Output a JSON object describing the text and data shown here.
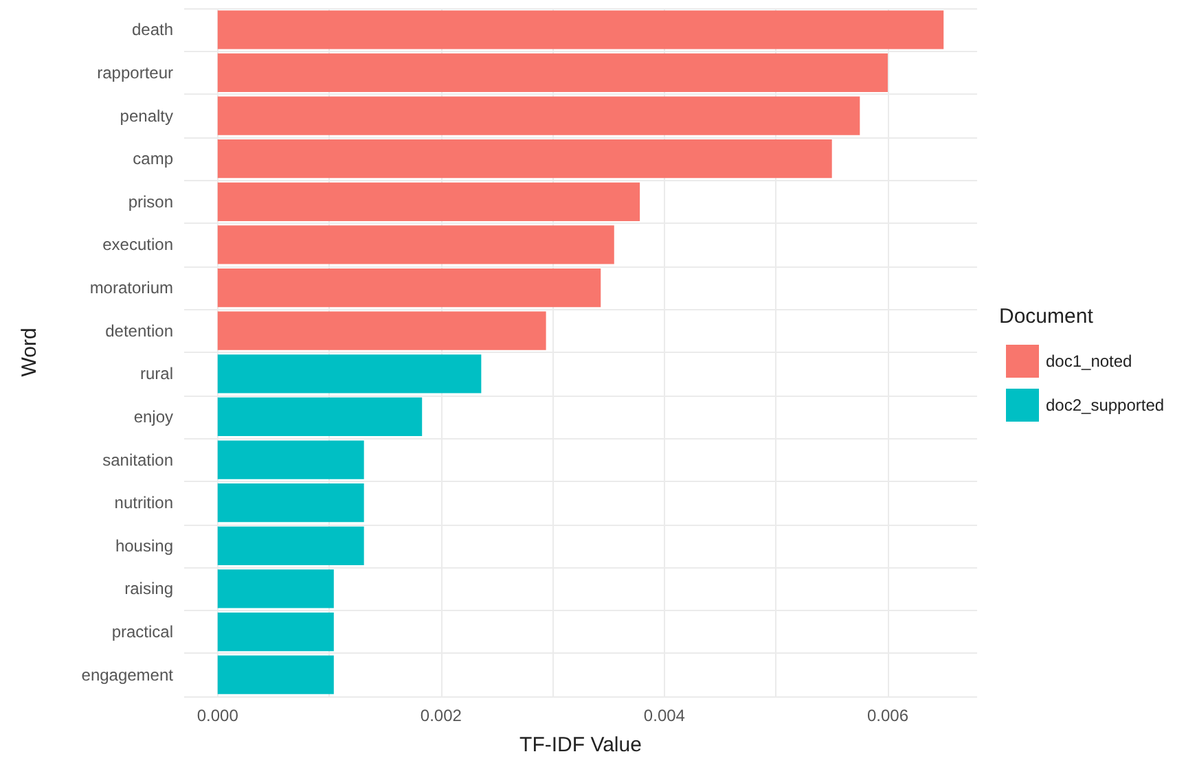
{
  "chart_data": {
    "type": "bar",
    "orientation": "horizontal",
    "xlabel": "TF-IDF Value",
    "ylabel": "Word",
    "legend_title": "Document",
    "categories": [
      "death",
      "rapporteur",
      "penalty",
      "camp",
      "prison",
      "execution",
      "moratorium",
      "detention",
      "rural",
      "enjoy",
      "sanitation",
      "nutrition",
      "housing",
      "raising",
      "practical",
      "engagement"
    ],
    "series": [
      {
        "name": "doc1_noted",
        "color": "#f8766d",
        "values": [
          0.0065,
          0.006,
          0.00575,
          0.0055,
          0.00378,
          0.00355,
          0.00343,
          0.00294,
          null,
          null,
          null,
          null,
          null,
          null,
          null,
          null
        ]
      },
      {
        "name": "doc2_supported",
        "color": "#00bfc4",
        "values": [
          null,
          null,
          null,
          null,
          null,
          null,
          null,
          null,
          0.00236,
          0.00183,
          0.00131,
          0.00131,
          0.00131,
          0.00104,
          0.00104,
          0.00104
        ]
      }
    ],
    "xlim": [
      -0.0003,
      0.0068
    ],
    "xticks": [
      {
        "value": 0,
        "label": "0.000"
      },
      {
        "value": 0.001,
        "label": null
      },
      {
        "value": 0.002,
        "label": "0.002"
      },
      {
        "value": 0.003,
        "label": null
      },
      {
        "value": 0.004,
        "label": "0.004"
      },
      {
        "value": 0.005,
        "label": null
      },
      {
        "value": 0.006,
        "label": "0.006"
      }
    ],
    "grid": true,
    "legend": "right"
  }
}
